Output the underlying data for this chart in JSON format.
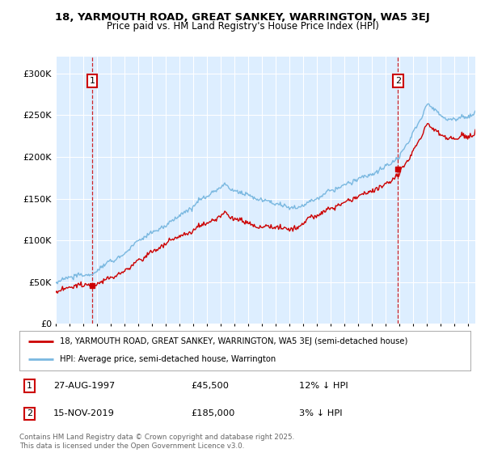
{
  "title_line1": "18, YARMOUTH ROAD, GREAT SANKEY, WARRINGTON, WA5 3EJ",
  "title_line2": "Price paid vs. HM Land Registry's House Price Index (HPI)",
  "hpi_color": "#7ab8e0",
  "price_color": "#cc0000",
  "annotation_color": "#cc0000",
  "bg_color": "#ddeeff",
  "sale1_year_f": 1997.646,
  "sale1_price": 45500,
  "sale2_year_f": 2019.875,
  "sale2_price": 185000,
  "sale1_date": "27-AUG-1997",
  "sale1_hpi_pct": "12% ↓ HPI",
  "sale2_date": "15-NOV-2019",
  "sale2_hpi_pct": "3% ↓ HPI",
  "legend_line1": "18, YARMOUTH ROAD, GREAT SANKEY, WARRINGTON, WA5 3EJ (semi-detached house)",
  "legend_line2": "HPI: Average price, semi-detached house, Warrington",
  "footer": "Contains HM Land Registry data © Crown copyright and database right 2025.\nThis data is licensed under the Open Government Licence v3.0.",
  "ylim": [
    0,
    320000
  ],
  "xlim_start": 1995.0,
  "xlim_end": 2025.5,
  "yticks": [
    0,
    50000,
    100000,
    150000,
    200000,
    250000,
    300000
  ],
  "ytick_labels": [
    "£0",
    "£50K",
    "£100K",
    "£150K",
    "£200K",
    "£250K",
    "£300K"
  ],
  "xticks": [
    1995,
    1996,
    1997,
    1998,
    1999,
    2000,
    2001,
    2002,
    2003,
    2004,
    2005,
    2006,
    2007,
    2008,
    2009,
    2010,
    2011,
    2012,
    2013,
    2014,
    2015,
    2016,
    2017,
    2018,
    2019,
    2020,
    2021,
    2022,
    2023,
    2024,
    2025
  ]
}
